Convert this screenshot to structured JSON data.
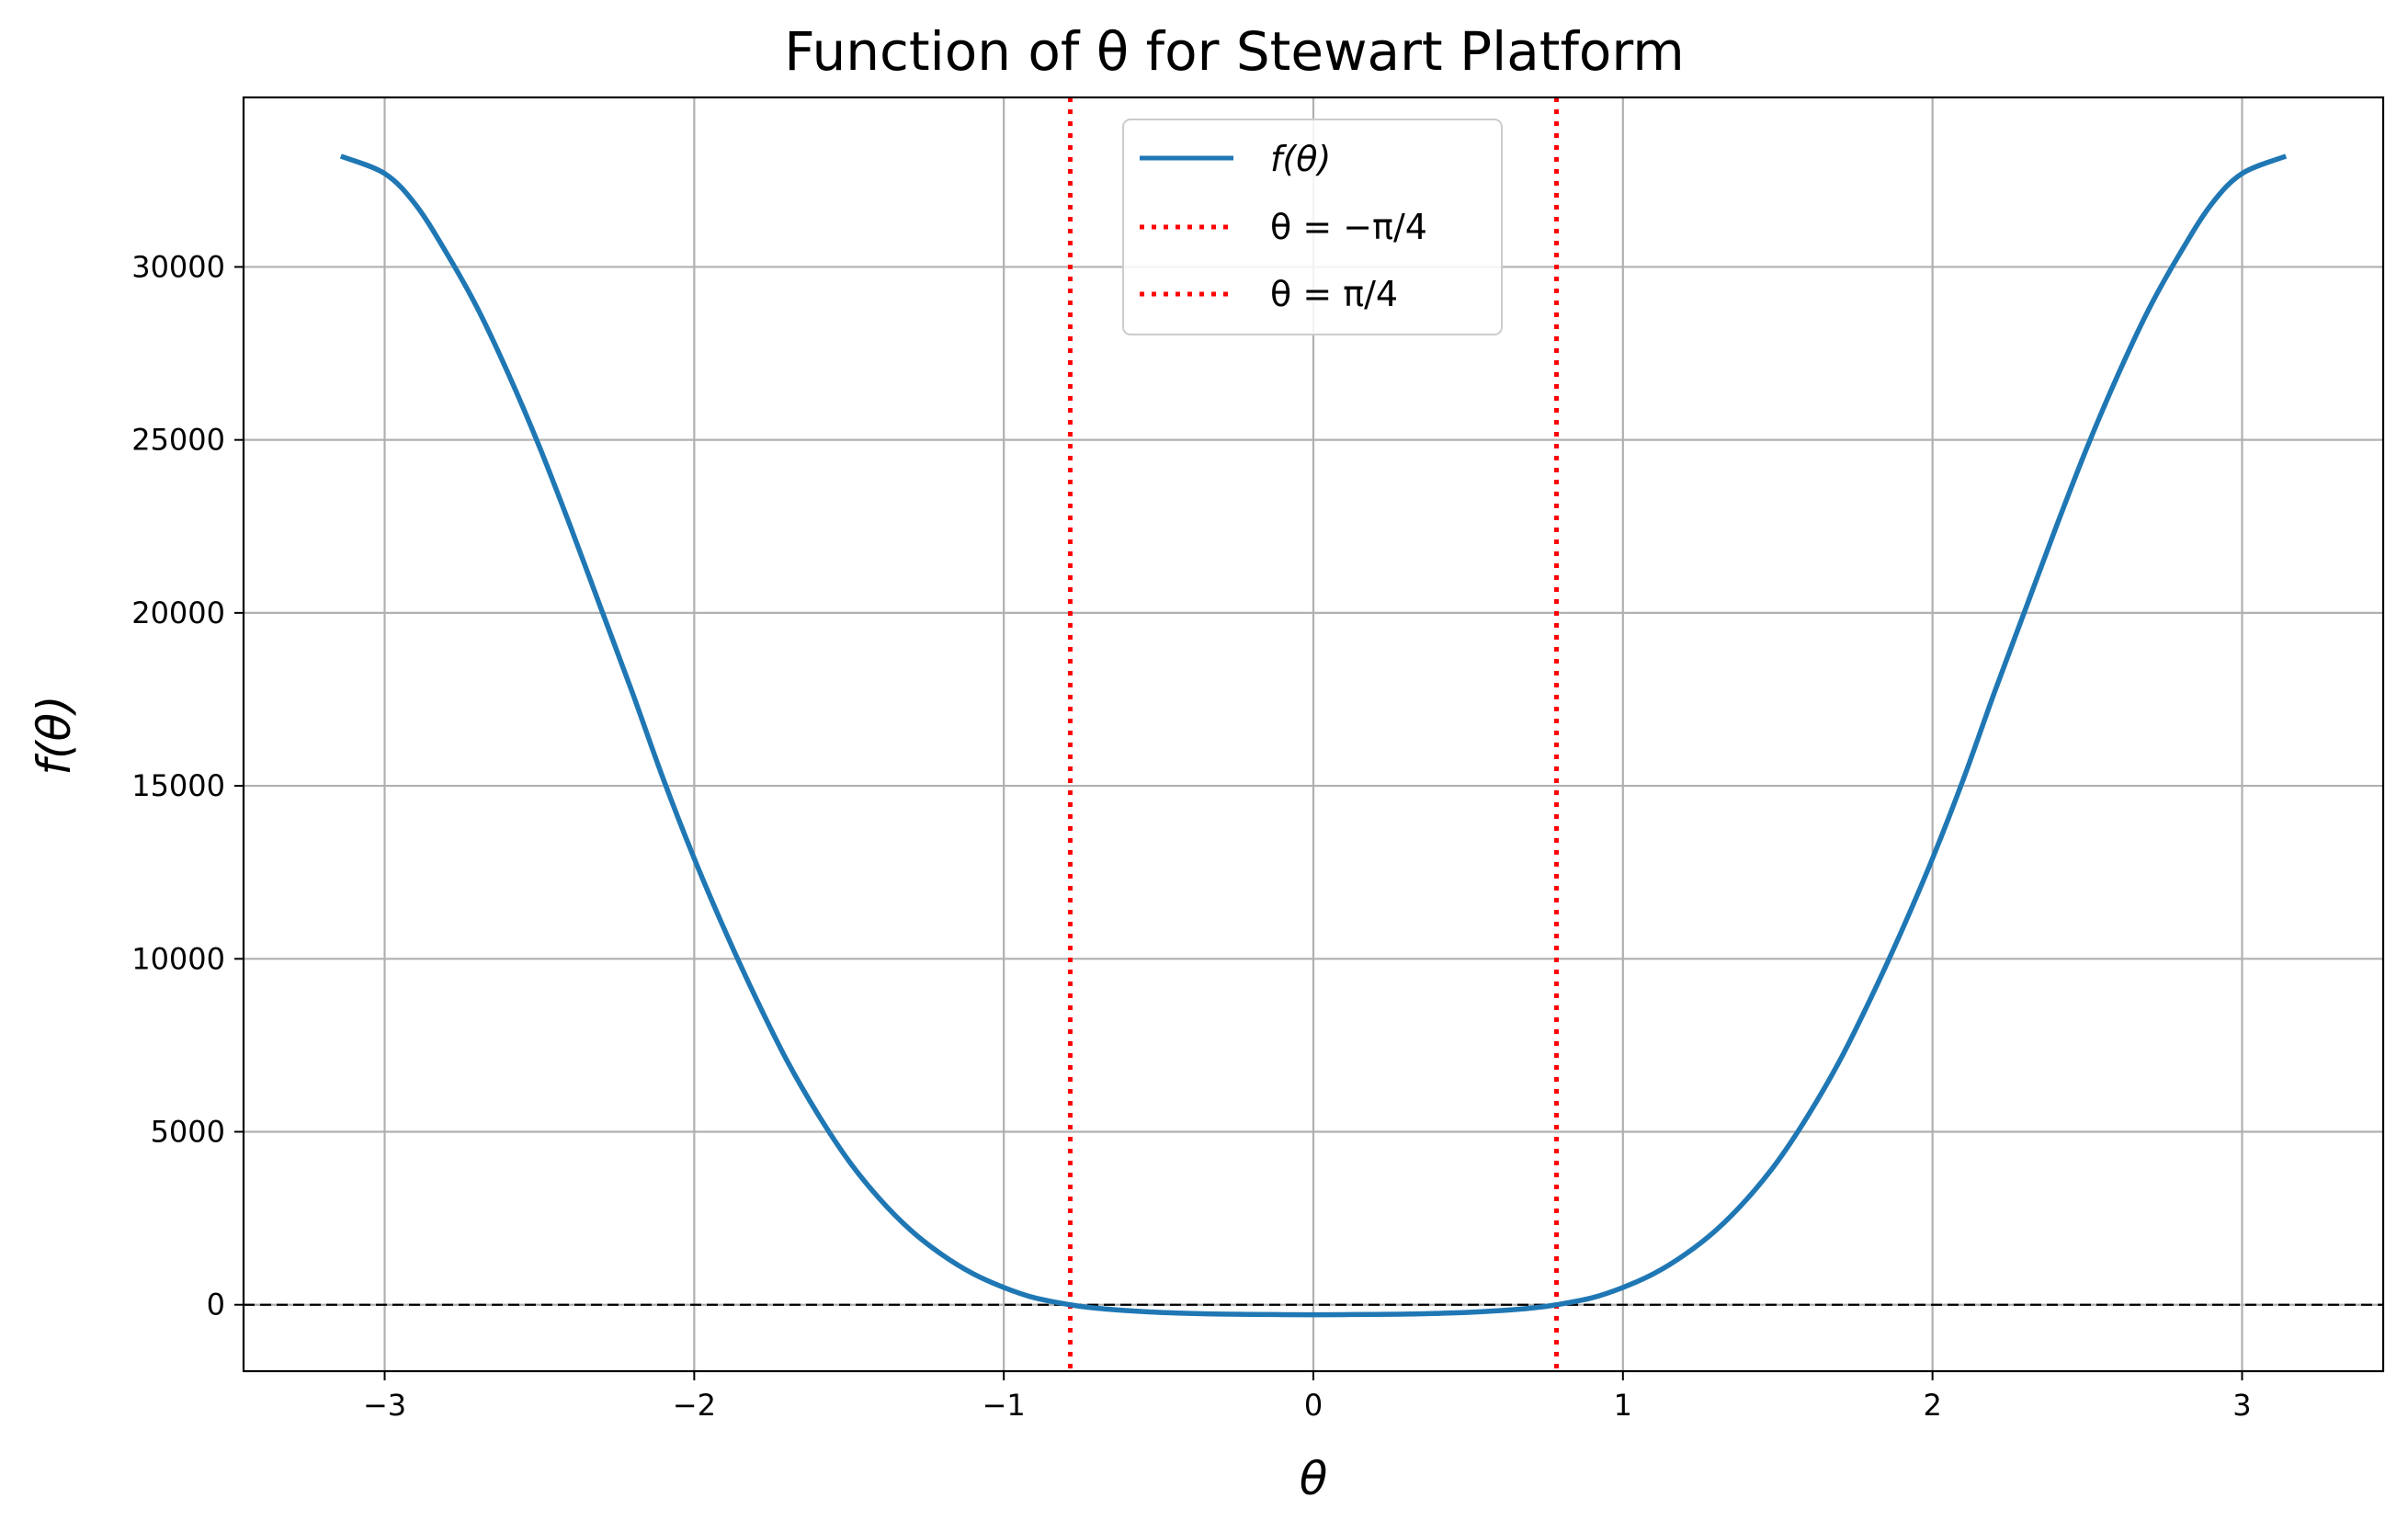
{
  "chart_data": {
    "type": "line",
    "title": "Function of θ for Stewart Platform",
    "xlabel": "θ",
    "ylabel": "f(θ)",
    "xlim": [
      -3.4558,
      3.4558
    ],
    "ylim": [
      -1920,
      34900
    ],
    "x_ticks": [
      -3,
      -2,
      -1,
      0,
      1,
      2,
      3
    ],
    "x_tick_labels": [
      "−3",
      "−2",
      "−1",
      "0",
      "1",
      "2",
      "3"
    ],
    "y_ticks": [
      0,
      5000,
      10000,
      15000,
      20000,
      25000,
      30000
    ],
    "y_tick_labels": [
      "0",
      "5000",
      "10000",
      "15000",
      "20000",
      "25000",
      "30000"
    ],
    "grid": true,
    "legend_position": "top-center",
    "series": [
      {
        "name": "f(θ)",
        "color": "#1f77b4",
        "style": "solid",
        "points": [
          [
            -3.1416,
            33200
          ],
          [
            -3.0,
            32700
          ],
          [
            -2.9,
            31800
          ],
          [
            -2.8,
            30400
          ],
          [
            -2.7,
            28800
          ],
          [
            -2.6,
            26900
          ],
          [
            -2.5,
            24800
          ],
          [
            -2.4,
            22500
          ],
          [
            -2.3,
            20100
          ],
          [
            -2.2,
            17700
          ],
          [
            -2.1,
            15200
          ],
          [
            -2.0,
            12900
          ],
          [
            -1.9,
            10800
          ],
          [
            -1.8,
            8850
          ],
          [
            -1.7,
            7050
          ],
          [
            -1.6,
            5500
          ],
          [
            -1.5,
            4150
          ],
          [
            -1.4,
            3050
          ],
          [
            -1.3,
            2150
          ],
          [
            -1.2,
            1450
          ],
          [
            -1.1,
            900
          ],
          [
            -1.0,
            500
          ],
          [
            -0.9,
            200
          ],
          [
            -0.7854,
            0
          ],
          [
            -0.7,
            -100
          ],
          [
            -0.6,
            -170
          ],
          [
            -0.5,
            -220
          ],
          [
            -0.4,
            -250
          ],
          [
            -0.3,
            -270
          ],
          [
            -0.2,
            -280
          ],
          [
            -0.1,
            -285
          ],
          [
            0.0,
            -288
          ],
          [
            0.1,
            -285
          ],
          [
            0.2,
            -280
          ],
          [
            0.3,
            -270
          ],
          [
            0.4,
            -250
          ],
          [
            0.5,
            -220
          ],
          [
            0.6,
            -170
          ],
          [
            0.7,
            -100
          ],
          [
            0.7854,
            0
          ],
          [
            0.9,
            200
          ],
          [
            1.0,
            500
          ],
          [
            1.1,
            900
          ],
          [
            1.2,
            1450
          ],
          [
            1.3,
            2150
          ],
          [
            1.4,
            3050
          ],
          [
            1.5,
            4150
          ],
          [
            1.6,
            5500
          ],
          [
            1.7,
            7050
          ],
          [
            1.8,
            8850
          ],
          [
            1.9,
            10800
          ],
          [
            2.0,
            12900
          ],
          [
            2.1,
            15200
          ],
          [
            2.2,
            17700
          ],
          [
            2.3,
            20100
          ],
          [
            2.4,
            22500
          ],
          [
            2.5,
            24800
          ],
          [
            2.6,
            26900
          ],
          [
            2.7,
            28800
          ],
          [
            2.8,
            30400
          ],
          [
            2.9,
            31800
          ],
          [
            3.0,
            32700
          ],
          [
            3.1416,
            33200
          ]
        ]
      }
    ],
    "reference_lines": [
      {
        "name": "θ = −π/4",
        "axis": "x",
        "value": -0.7854,
        "color": "#ff0000",
        "style": "dotted"
      },
      {
        "name": "θ = π/4",
        "axis": "x",
        "value": 0.7854,
        "color": "#ff0000",
        "style": "dotted"
      },
      {
        "axis": "y",
        "value": 0,
        "color": "#000000",
        "style": "dashed"
      }
    ]
  }
}
